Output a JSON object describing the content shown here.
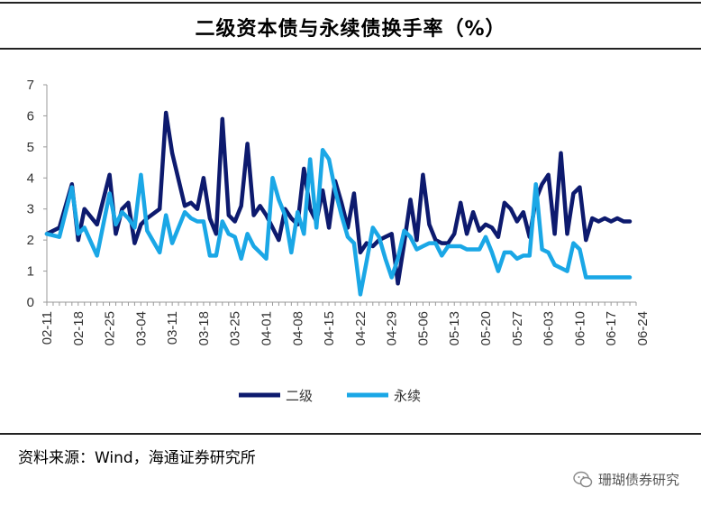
{
  "title": "二级资本债与永续债换手率（%）",
  "source": "资料来源：Wind，海通证券研究所",
  "watermark": "珊瑚债券研究",
  "chart_data": {
    "type": "line",
    "title": "二级资本债与永续债换手率（%）",
    "xlabel": "",
    "ylabel": "",
    "ylim": [
      0,
      7
    ],
    "yticks": [
      0,
      1,
      2,
      3,
      4,
      5,
      6,
      7
    ],
    "grid": false,
    "legend_position": "bottom-center",
    "x_tick_labels": [
      "02-11",
      "02-18",
      "02-25",
      "03-04",
      "03-11",
      "03-18",
      "03-25",
      "04-01",
      "04-08",
      "04-15",
      "04-22",
      "04-29",
      "05-06",
      "05-13",
      "05-20",
      "05-27",
      "06-03",
      "06-10",
      "06-17",
      "06-24"
    ],
    "x_range": [
      0,
      94
    ],
    "series": [
      {
        "name": "二级",
        "color": "#0d1a6e",
        "x": [
          0,
          2,
          4,
          5,
          6,
          8,
          10,
          11,
          12,
          13,
          14,
          15,
          16,
          18,
          19,
          20,
          22,
          23,
          24,
          25,
          26,
          27,
          28,
          29,
          30,
          31,
          32,
          33,
          34,
          35,
          36,
          37,
          38,
          39,
          40,
          41,
          42,
          43,
          44,
          45,
          46,
          47,
          48,
          49,
          50,
          51,
          52,
          53,
          54,
          55,
          56,
          57,
          58,
          59,
          60,
          61,
          62,
          63,
          64,
          65,
          66,
          67,
          68,
          69,
          70,
          71,
          72,
          73,
          74,
          75,
          76,
          77,
          78,
          79,
          80,
          81,
          82,
          83,
          84,
          85,
          86,
          87,
          88,
          89,
          90,
          91,
          92,
          93
        ],
        "values": [
          2.2,
          2.4,
          3.8,
          2.0,
          3.0,
          2.5,
          4.1,
          2.2,
          3.0,
          3.2,
          1.9,
          2.5,
          2.7,
          3.0,
          6.1,
          4.8,
          3.1,
          3.2,
          3.0,
          4.0,
          2.7,
          2.2,
          5.9,
          2.8,
          2.6,
          3.1,
          5.1,
          2.8,
          3.1,
          2.8,
          2.4,
          2.0,
          3.0,
          2.7,
          2.5,
          4.3,
          3.0,
          2.6,
          3.6,
          2.4,
          3.9,
          3.2,
          2.4,
          3.5,
          1.6,
          1.9,
          1.8,
          2.0,
          2.1,
          2.2,
          0.6,
          1.9,
          3.3,
          2.0,
          4.1,
          2.5,
          2.0,
          1.9,
          1.9,
          2.2,
          3.2,
          2.2,
          2.9,
          2.3,
          2.5,
          2.4,
          2.1,
          3.2,
          3.0,
          2.6,
          2.9,
          2.1,
          3.3,
          3.8,
          4.1,
          2.2,
          4.8,
          2.2,
          3.5,
          3.7,
          2.0,
          2.7,
          2.6,
          2.7,
          2.6,
          2.7,
          2.6,
          2.6
        ],
        "x_visible": [
          0,
          2,
          4,
          5,
          6,
          8,
          10,
          11,
          13,
          14,
          15,
          17,
          19,
          20,
          21,
          22,
          24,
          25,
          27,
          28,
          29,
          31,
          32,
          33,
          34,
          35,
          36,
          38,
          39,
          40,
          42,
          43,
          44,
          46,
          47,
          48,
          49,
          50,
          51,
          52,
          53,
          54,
          55,
          56,
          57,
          58,
          59,
          60,
          61,
          62,
          63,
          64,
          65,
          66,
          67,
          68,
          69,
          70,
          71,
          72,
          73,
          74,
          75,
          76,
          77,
          78,
          79,
          80,
          81,
          82,
          83,
          84,
          85,
          86,
          87,
          88,
          89,
          90,
          91,
          92,
          93
        ]
      },
      {
        "name": "永续",
        "color": "#1aa7e6",
        "x": [
          0,
          2,
          4,
          5,
          6,
          8,
          10,
          11,
          12,
          13,
          14,
          15,
          16,
          18,
          19,
          20,
          22,
          23,
          24,
          25,
          26,
          27,
          28,
          29,
          30,
          31,
          32,
          33,
          34,
          35,
          36,
          37,
          38,
          39,
          40,
          41,
          42,
          43,
          44,
          45,
          46,
          47,
          48,
          49,
          50,
          51,
          52,
          53,
          54,
          55,
          56,
          57,
          58,
          59,
          60,
          61,
          62,
          63,
          64,
          65,
          66,
          67,
          68,
          69,
          70,
          71,
          72,
          73,
          74,
          75,
          76,
          77,
          78,
          79,
          80,
          81,
          82,
          83,
          84,
          85,
          86,
          87,
          88,
          89,
          90,
          91,
          92,
          93
        ],
        "values": [
          2.2,
          2.1,
          3.7,
          2.2,
          2.4,
          1.5,
          3.5,
          2.5,
          2.9,
          2.7,
          2.4,
          4.1,
          2.3,
          1.6,
          2.8,
          1.9,
          2.9,
          2.7,
          2.6,
          2.6,
          1.5,
          1.5,
          2.6,
          2.2,
          2.1,
          1.4,
          2.2,
          1.8,
          1.6,
          1.4,
          4.0,
          3.3,
          2.8,
          1.6,
          2.9,
          2.2,
          4.6,
          2.4,
          4.9,
          4.6,
          3.6,
          2.8,
          2.1,
          1.9,
          0.25,
          1.3,
          2.4,
          2.1,
          1.4,
          0.8,
          1.4,
          2.3,
          2.1,
          1.7,
          1.8,
          1.9,
          1.9,
          1.5,
          1.8,
          1.8,
          1.8,
          1.7,
          1.7,
          1.7,
          2.1,
          1.6,
          1.0,
          1.6,
          1.6,
          1.4,
          1.5,
          1.5,
          3.8,
          1.7,
          1.6,
          1.2,
          1.1,
          1.0,
          1.9,
          1.7,
          0.8,
          0.8,
          0.8,
          0.8,
          0.8,
          0.8,
          0.8,
          0.8
        ]
      }
    ]
  }
}
